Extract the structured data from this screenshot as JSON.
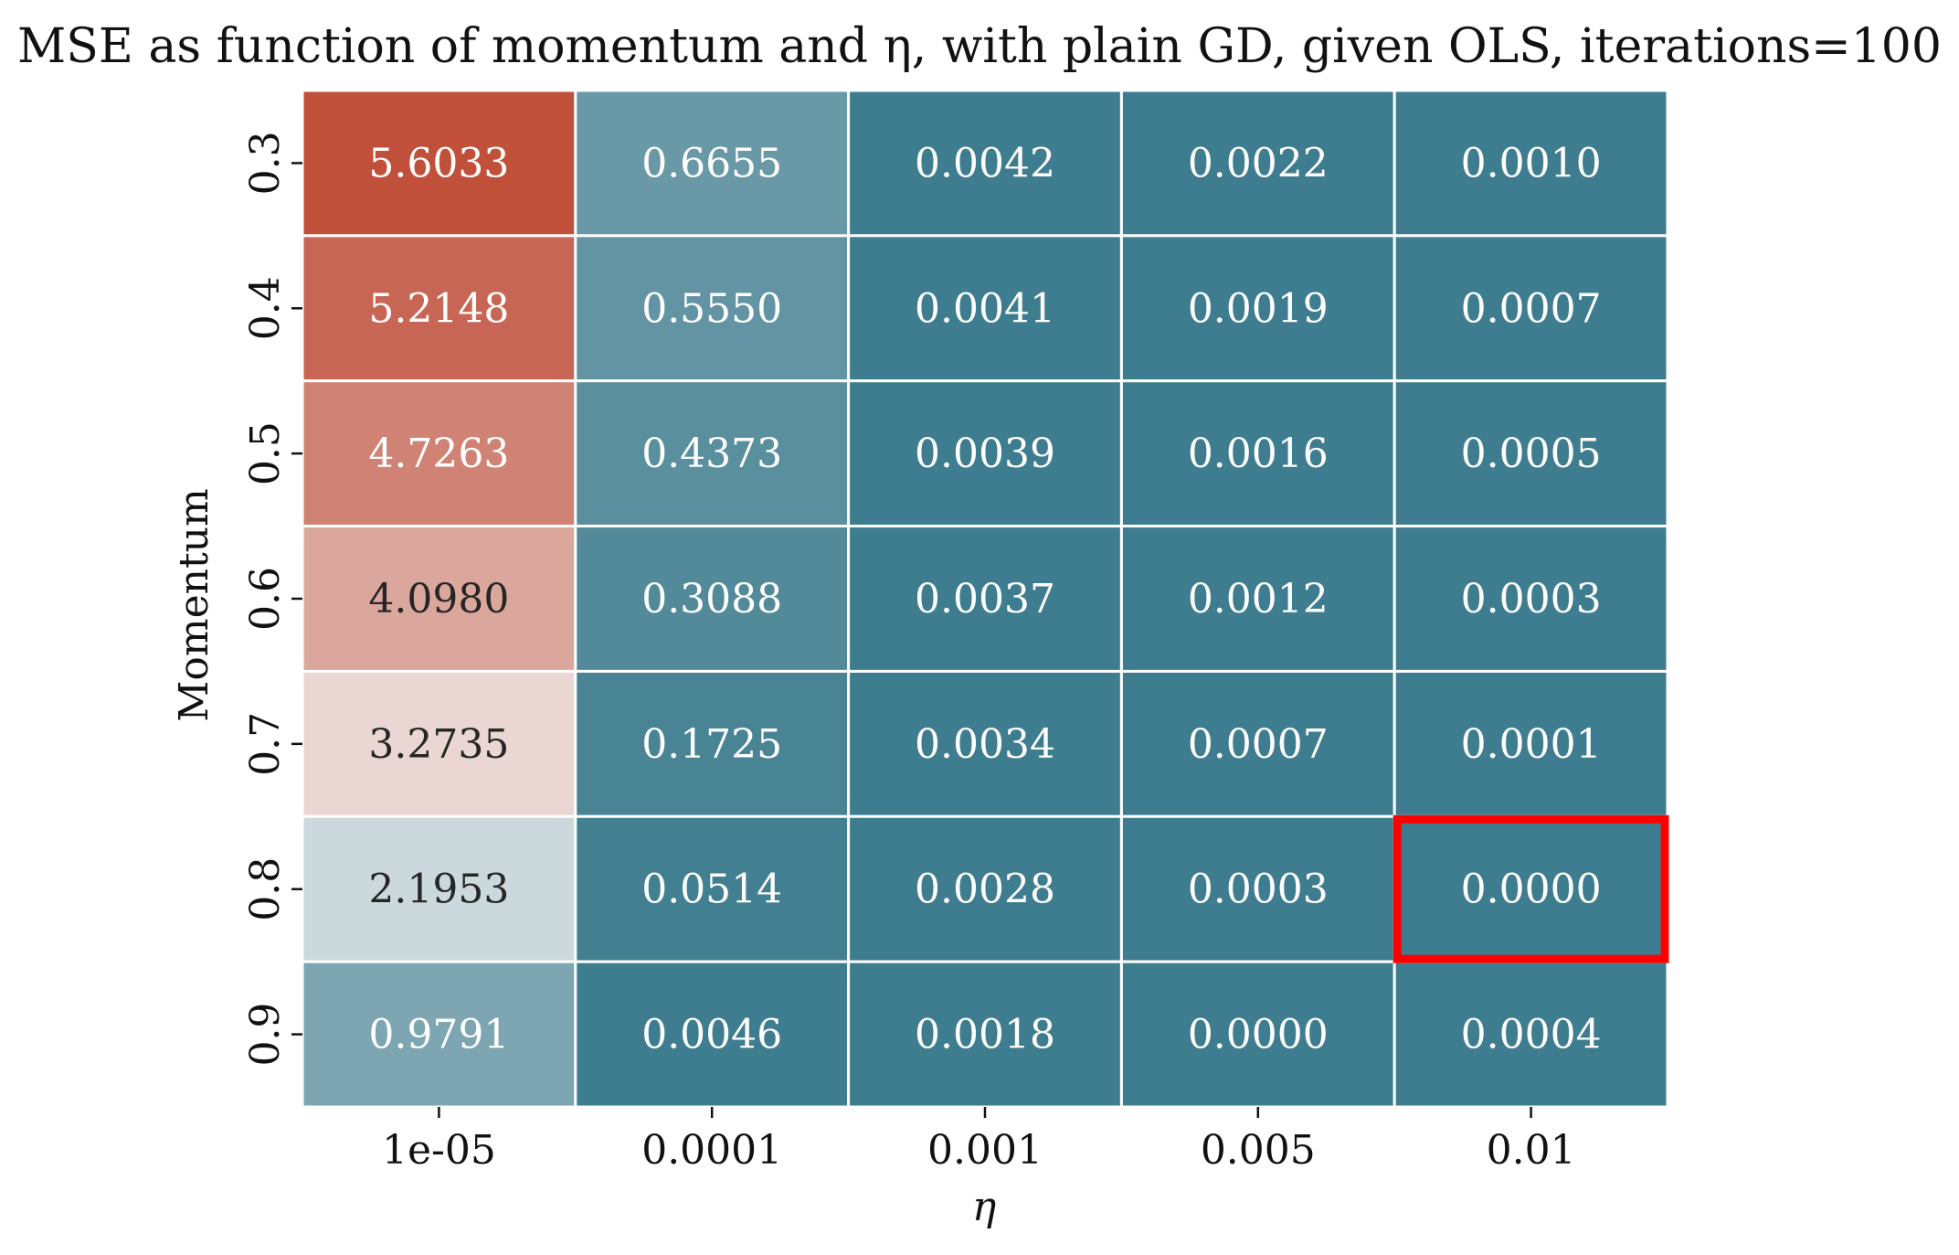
{
  "chart_data": {
    "type": "heatmap",
    "title": "MSE as function of momentum and η, with plain GD, given OLS, iterations=100",
    "xlabel": "η",
    "ylabel": "Momentum",
    "x_categories": [
      "1e-05",
      "0.0001",
      "0.001",
      "0.005",
      "0.01"
    ],
    "y_categories": [
      "0.3",
      "0.4",
      "0.5",
      "0.6",
      "0.7",
      "0.8",
      "0.9"
    ],
    "values": [
      [
        5.6033,
        0.6655,
        0.0042,
        0.0022,
        0.001
      ],
      [
        5.2148,
        0.555,
        0.0041,
        0.0019,
        0.0007
      ],
      [
        4.7263,
        0.4373,
        0.0039,
        0.0016,
        0.0005
      ],
      [
        4.098,
        0.3088,
        0.0037,
        0.0012,
        0.0003
      ],
      [
        3.2735,
        0.1725,
        0.0034,
        0.0007,
        0.0001
      ],
      [
        2.1953,
        0.0514,
        0.0028,
        0.0003,
        0.0
      ],
      [
        0.9791,
        0.0046,
        0.0018,
        0.0,
        0.0004
      ]
    ],
    "value_labels": [
      [
        "5.6033",
        "0.6655",
        "0.0042",
        "0.0022",
        "0.0010"
      ],
      [
        "5.2148",
        "0.5550",
        "0.0041",
        "0.0019",
        "0.0007"
      ],
      [
        "4.7263",
        "0.4373",
        "0.0039",
        "0.0016",
        "0.0005"
      ],
      [
        "4.0980",
        "0.3088",
        "0.0037",
        "0.0012",
        "0.0003"
      ],
      [
        "3.2735",
        "0.1725",
        "0.0034",
        "0.0007",
        "0.0001"
      ],
      [
        "2.1953",
        "0.0514",
        "0.0028",
        "0.0003",
        "0.0000"
      ],
      [
        "0.9791",
        "0.0046",
        "0.0018",
        "0.0000",
        "0.0004"
      ]
    ],
    "highlight_cell": {
      "row": 5,
      "col": 4,
      "color": "#ff0000"
    },
    "colormap": {
      "low": "#3e7d8f",
      "mid": "#f2f2f2",
      "high": "#c0503a"
    },
    "colorbar": false,
    "grid": false
  }
}
